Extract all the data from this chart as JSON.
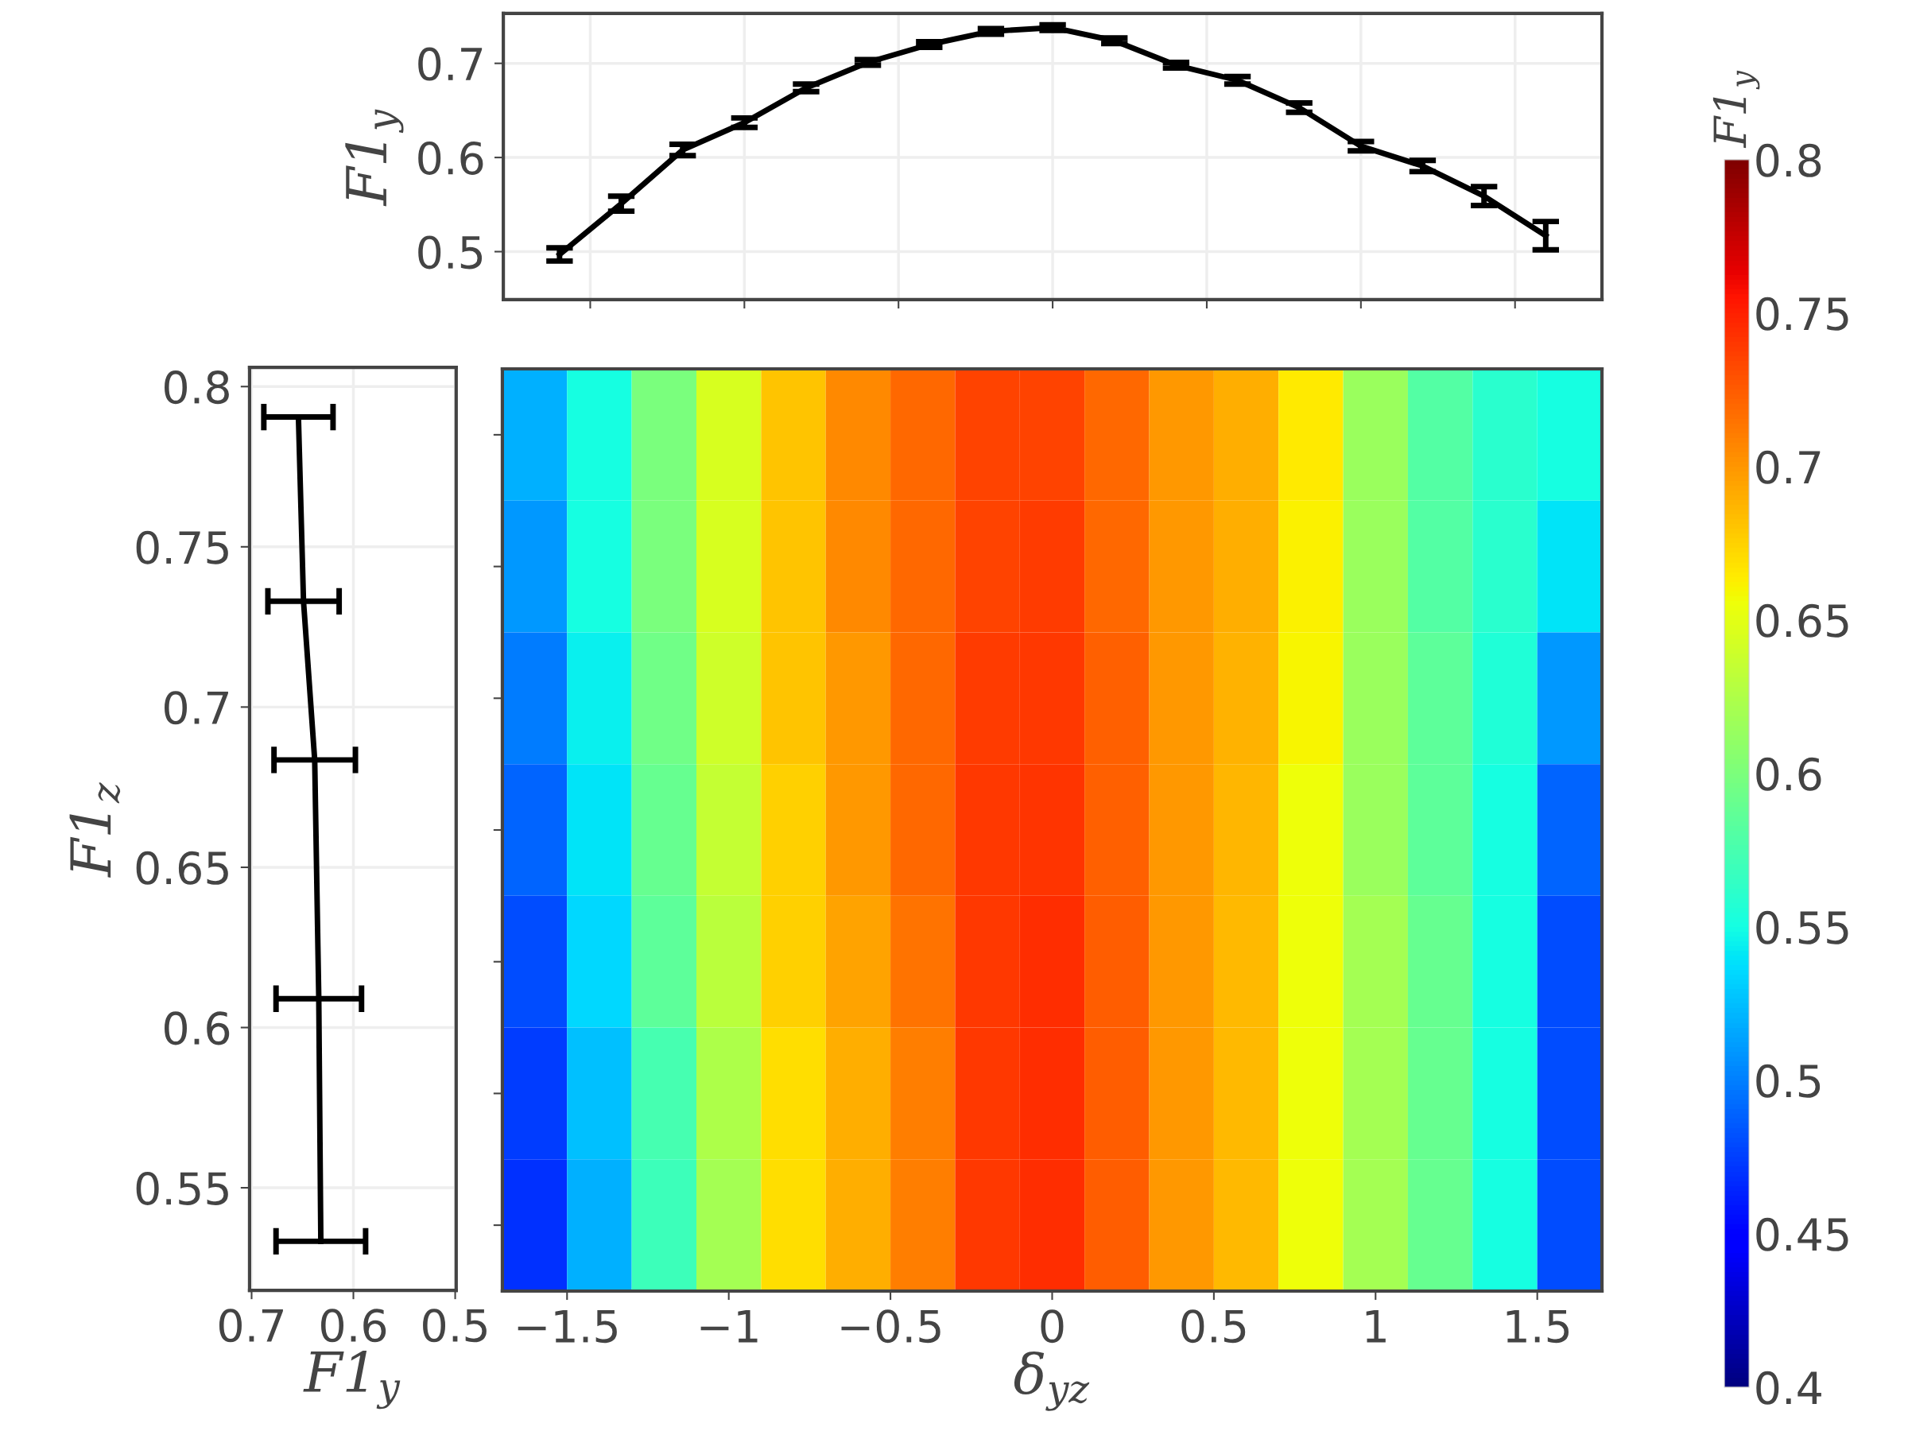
{
  "chart_data": [
    {
      "type": "line",
      "ylabel": "F1$_{y}$",
      "xlim": [
        -1.7,
        1.7
      ],
      "xticks": [
        {
          "value": -1.431,
          "label": null
        },
        {
          "value": -0.954,
          "label": null
        },
        {
          "value": -0.477,
          "label": null
        },
        {
          "value": 0,
          "label": null
        },
        {
          "value": 0.477,
          "label": null
        },
        {
          "value": 0.954,
          "label": null
        },
        {
          "value": 1.431,
          "label": null
        }
      ],
      "ylim": [
        0.449,
        0.753
      ],
      "yticks": [
        0.5,
        0.6,
        0.7
      ],
      "tick_labels": "y",
      "grid": true,
      "marker": "none",
      "line_style": "solid",
      "series": [
        {
          "color": "#000000",
          "x": [
            -1.526,
            -1.335,
            -1.145,
            -0.954,
            -0.763,
            -0.572,
            -0.382,
            -0.191,
            0,
            0.191,
            0.382,
            0.572,
            0.763,
            0.954,
            1.145,
            1.335,
            1.526
          ],
          "values": [
            0.497,
            0.551,
            0.608,
            0.637,
            0.674,
            0.701,
            0.72,
            0.734,
            0.738,
            0.724,
            0.698,
            0.682,
            0.653,
            0.612,
            0.591,
            0.559,
            0.517
          ],
          "errors": [
            0.007,
            0.008,
            0.006,
            0.005,
            0.004,
            0.003,
            0.003,
            0.003,
            0.003,
            0.003,
            0.003,
            0.004,
            0.005,
            0.005,
            0.006,
            0.01,
            0.015
          ]
        }
      ]
    },
    {
      "type": "line",
      "xlabel": "F1$_{y}$",
      "ylabel": "F1$_{z}$",
      "xlim": [
        0.702,
        0.499
      ],
      "xticks": [
        0.7,
        0.6,
        0.5
      ],
      "ylim": [
        0.518,
        0.806
      ],
      "yticks": [
        0.55,
        0.6,
        0.65,
        0.7,
        0.75,
        0.8
      ],
      "grid": true,
      "marker": "none",
      "line_style": "solid",
      "series": [
        {
          "color": "#000000",
          "x": [
            0.654,
            0.649,
            0.638,
            0.634,
            0.632
          ],
          "values": [
            0.7905,
            0.733,
            0.6835,
            0.609,
            0.5333
          ],
          "xerrors": [
            0.034,
            0.035,
            0.04,
            0.042,
            0.044
          ]
        }
      ]
    },
    {
      "type": "heatmap",
      "xlabel": "δ$_{yz}$",
      "clabel": "F1$_{y}$",
      "x": [
        -1.6,
        -1.4,
        -1.2,
        -1.0,
        -0.8,
        -0.6,
        -0.4,
        -0.2,
        0,
        0.2,
        0.4,
        0.6,
        0.8,
        1.0,
        1.2,
        1.4,
        1.6
      ],
      "xlim": [
        -1.7,
        1.7
      ],
      "xticks": [
        -1.5,
        -1,
        -0.5,
        0,
        0.5,
        1,
        1.5
      ],
      "tick_labels": "x",
      "y_categories": [
        null,
        null,
        null,
        null,
        null,
        null,
        null
      ],
      "cells": [
        [
          0.52,
          0.55,
          0.6,
          0.645,
          0.68,
          0.705,
          0.72,
          0.735,
          0.735,
          0.72,
          0.7,
          0.69,
          0.665,
          0.615,
          0.58,
          0.56,
          0.55
        ],
        [
          0.51,
          0.55,
          0.6,
          0.645,
          0.68,
          0.705,
          0.72,
          0.735,
          0.738,
          0.72,
          0.7,
          0.69,
          0.662,
          0.615,
          0.58,
          0.56,
          0.54
        ],
        [
          0.5,
          0.545,
          0.595,
          0.64,
          0.68,
          0.7,
          0.72,
          0.738,
          0.74,
          0.722,
          0.7,
          0.688,
          0.66,
          0.615,
          0.585,
          0.555,
          0.51
        ],
        [
          0.49,
          0.54,
          0.59,
          0.635,
          0.675,
          0.7,
          0.72,
          0.74,
          0.742,
          0.722,
          0.7,
          0.686,
          0.655,
          0.615,
          0.585,
          0.55,
          0.49
        ],
        [
          0.48,
          0.535,
          0.585,
          0.63,
          0.675,
          0.695,
          0.715,
          0.74,
          0.744,
          0.724,
          0.7,
          0.685,
          0.655,
          0.62,
          0.59,
          0.55,
          0.48
        ],
        [
          0.475,
          0.525,
          0.575,
          0.625,
          0.67,
          0.69,
          0.71,
          0.74,
          0.745,
          0.725,
          0.7,
          0.685,
          0.655,
          0.62,
          0.59,
          0.55,
          0.48
        ],
        [
          0.47,
          0.52,
          0.57,
          0.62,
          0.67,
          0.69,
          0.71,
          0.74,
          0.745,
          0.725,
          0.7,
          0.685,
          0.655,
          0.62,
          0.59,
          0.55,
          0.48
        ]
      ],
      "clim": [
        0.4,
        0.8
      ],
      "cticks": [
        0.4,
        0.45,
        0.5,
        0.55,
        0.6,
        0.65,
        0.7,
        0.75,
        0.8
      ]
    }
  ]
}
